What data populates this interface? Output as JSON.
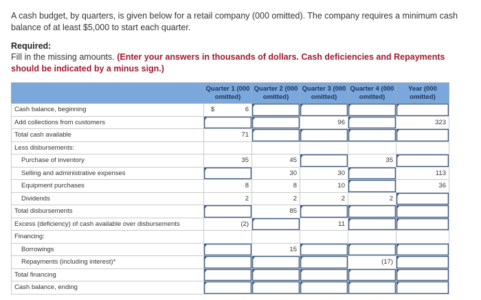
{
  "intro": {
    "text": "A cash budget, by quarters, is given below for a retail company (000 omitted). The company requires a minimum cash balance of at least $5,000 to start each quarter."
  },
  "required": {
    "title": "Required:",
    "instruction": "Fill in the missing amounts.",
    "note": "(Enter your answers in thousands of dollars. Cash deficiencies and Repayments should be indicated by a minus sign.)"
  },
  "table": {
    "headers": [
      "",
      "Quarter 1 (000 omitted)",
      "Quarter 2 (000 omitted)",
      "Quarter 3 (000 omitted)",
      "Quarter 4 (000 omitted)",
      "Year (000 omitted)"
    ],
    "rows": [
      {
        "label": "Cash balance, beginning",
        "indent": false,
        "cells": [
          {
            "type": "given",
            "value": "6",
            "dollar": "$"
          },
          {
            "type": "input",
            "value": ""
          },
          {
            "type": "input",
            "value": ""
          },
          {
            "type": "input",
            "value": ""
          },
          {
            "type": "input",
            "value": ""
          }
        ]
      },
      {
        "label": "Add collections from customers",
        "indent": false,
        "cells": [
          {
            "type": "input",
            "value": ""
          },
          {
            "type": "input",
            "value": ""
          },
          {
            "type": "given",
            "value": "96"
          },
          {
            "type": "input",
            "value": ""
          },
          {
            "type": "given",
            "value": "323"
          }
        ]
      },
      {
        "label": "Total cash available",
        "indent": false,
        "cells": [
          {
            "type": "given",
            "value": "71"
          },
          {
            "type": "input",
            "value": ""
          },
          {
            "type": "input",
            "value": ""
          },
          {
            "type": "input",
            "value": ""
          },
          {
            "type": "input",
            "value": ""
          }
        ]
      },
      {
        "label": "Less disbursements:",
        "indent": false,
        "cells": [
          {
            "type": "blank",
            "value": ""
          },
          {
            "type": "blank",
            "value": ""
          },
          {
            "type": "blank",
            "value": ""
          },
          {
            "type": "blank",
            "value": ""
          },
          {
            "type": "blank",
            "value": ""
          }
        ]
      },
      {
        "label": "Purchase of inventory",
        "indent": true,
        "cells": [
          {
            "type": "given",
            "value": "35"
          },
          {
            "type": "given",
            "value": "45"
          },
          {
            "type": "input",
            "value": ""
          },
          {
            "type": "given",
            "value": "35"
          },
          {
            "type": "input",
            "value": ""
          }
        ]
      },
      {
        "label": "Selling and administrative expenses",
        "indent": true,
        "cells": [
          {
            "type": "input",
            "value": ""
          },
          {
            "type": "given",
            "value": "30"
          },
          {
            "type": "given",
            "value": "30"
          },
          {
            "type": "input",
            "value": ""
          },
          {
            "type": "given",
            "value": "113"
          }
        ]
      },
      {
        "label": "Equipment purchases",
        "indent": true,
        "cells": [
          {
            "type": "given",
            "value": "8"
          },
          {
            "type": "given",
            "value": "8"
          },
          {
            "type": "given",
            "value": "10"
          },
          {
            "type": "input",
            "value": ""
          },
          {
            "type": "given",
            "value": "36"
          }
        ]
      },
      {
        "label": "Dividends",
        "indent": true,
        "cells": [
          {
            "type": "given",
            "value": "2"
          },
          {
            "type": "given",
            "value": "2"
          },
          {
            "type": "given",
            "value": "2"
          },
          {
            "type": "given",
            "value": "2"
          },
          {
            "type": "input",
            "value": ""
          }
        ]
      },
      {
        "label": "Total disbursements",
        "indent": false,
        "cells": [
          {
            "type": "input",
            "value": ""
          },
          {
            "type": "given",
            "value": "85"
          },
          {
            "type": "input",
            "value": ""
          },
          {
            "type": "input",
            "value": ""
          },
          {
            "type": "input",
            "value": ""
          }
        ]
      },
      {
        "label": "Excess (deficiency) of cash available over disbursements",
        "indent": false,
        "cells": [
          {
            "type": "given",
            "value": "(2)"
          },
          {
            "type": "input",
            "value": ""
          },
          {
            "type": "given",
            "value": "11"
          },
          {
            "type": "input",
            "value": ""
          },
          {
            "type": "input",
            "value": ""
          }
        ]
      },
      {
        "label": "Financing:",
        "indent": false,
        "cells": [
          {
            "type": "blank",
            "value": ""
          },
          {
            "type": "blank",
            "value": ""
          },
          {
            "type": "blank",
            "value": ""
          },
          {
            "type": "blank",
            "value": ""
          },
          {
            "type": "blank",
            "value": ""
          }
        ]
      },
      {
        "label": "Borrowings",
        "indent": true,
        "cells": [
          {
            "type": "input",
            "value": ""
          },
          {
            "type": "given",
            "value": "15"
          },
          {
            "type": "input",
            "value": ""
          },
          {
            "type": "input",
            "value": ""
          },
          {
            "type": "input",
            "value": ""
          }
        ]
      },
      {
        "label": "Repayments (including interest)*",
        "indent": true,
        "cells": [
          {
            "type": "input",
            "value": ""
          },
          {
            "type": "input",
            "value": ""
          },
          {
            "type": "input",
            "value": ""
          },
          {
            "type": "given",
            "value": "(17)"
          },
          {
            "type": "input",
            "value": ""
          }
        ]
      },
      {
        "label": "Total financing",
        "indent": false,
        "cells": [
          {
            "type": "input",
            "value": ""
          },
          {
            "type": "input",
            "value": ""
          },
          {
            "type": "input",
            "value": ""
          },
          {
            "type": "input",
            "value": ""
          },
          {
            "type": "input",
            "value": ""
          }
        ]
      },
      {
        "label": "Cash balance, ending",
        "indent": false,
        "cells": [
          {
            "type": "input",
            "value": ""
          },
          {
            "type": "input",
            "value": ""
          },
          {
            "type": "input",
            "value": ""
          },
          {
            "type": "input",
            "value": ""
          },
          {
            "type": "input",
            "value": ""
          }
        ]
      }
    ]
  },
  "colors": {
    "header_bg": "#7ba8dc",
    "header_text": "#1d3355",
    "note_red": "#a3182c",
    "input_border": "#3d5a84"
  }
}
